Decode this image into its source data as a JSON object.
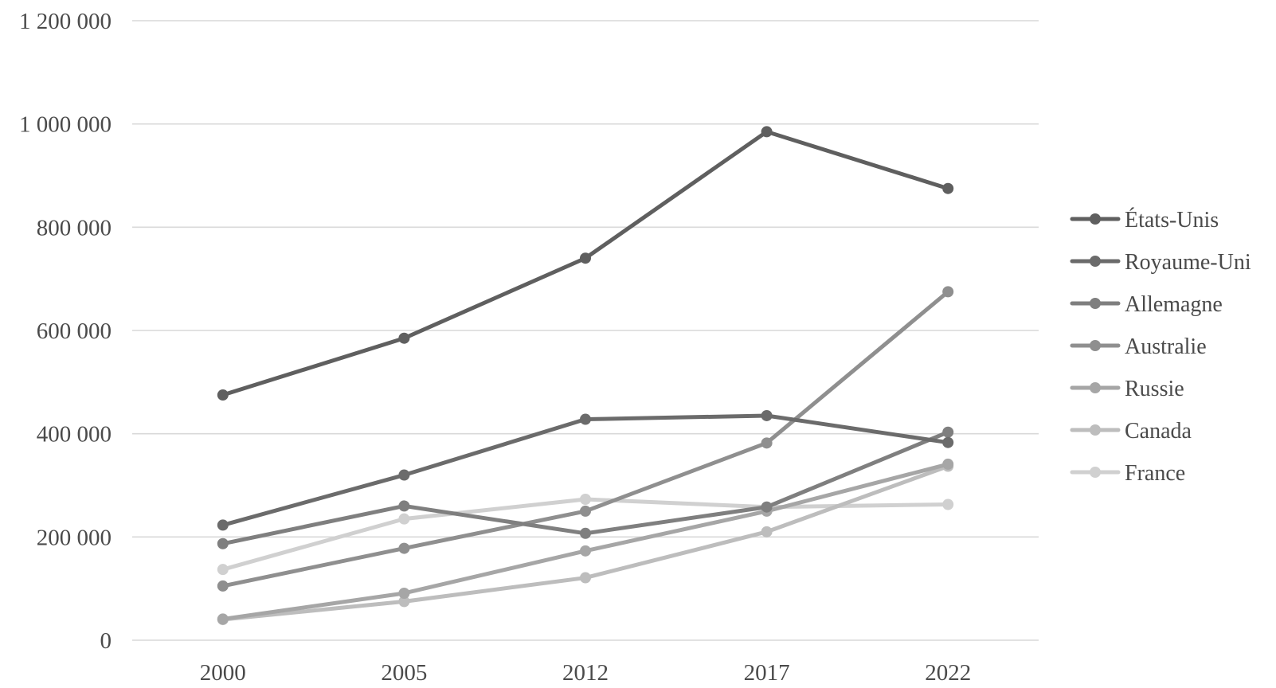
{
  "chart_data": {
    "type": "line",
    "title": "",
    "xlabel": "",
    "ylabel": "",
    "categories": [
      "2000",
      "2005",
      "2012",
      "2017",
      "2022"
    ],
    "ylim": [
      0,
      1200000
    ],
    "yticks": [
      0,
      200000,
      400000,
      600000,
      800000,
      1000000,
      1200000
    ],
    "ytick_labels": [
      "0",
      "200 000",
      "400 000",
      "600 000",
      "800 000",
      "1 000 000",
      "1 200 000"
    ],
    "grid": "horizontal",
    "legend_position": "right",
    "series": [
      {
        "name": "États-Unis",
        "color": "#5f5f5f",
        "values": [
          475000,
          585000,
          740000,
          985000,
          875000
        ]
      },
      {
        "name": "Royaume-Uni",
        "color": "#6b6b6b",
        "values": [
          223000,
          320000,
          428000,
          435000,
          383000
        ]
      },
      {
        "name": "Allemagne",
        "color": "#7f7f7f",
        "values": [
          187000,
          260000,
          207000,
          258000,
          403000
        ]
      },
      {
        "name": "Australie",
        "color": "#8f8f8f",
        "values": [
          105000,
          178000,
          250000,
          382000,
          675000
        ]
      },
      {
        "name": "Russie",
        "color": "#a6a6a6",
        "values": [
          41000,
          91000,
          173000,
          250000,
          341000
        ]
      },
      {
        "name": "Canada",
        "color": "#bdbdbd",
        "values": [
          40000,
          75000,
          121000,
          210000,
          337000
        ]
      },
      {
        "name": "France",
        "color": "#d0d0d0",
        "values": [
          137000,
          235000,
          273000,
          258000,
          263000
        ]
      }
    ]
  }
}
